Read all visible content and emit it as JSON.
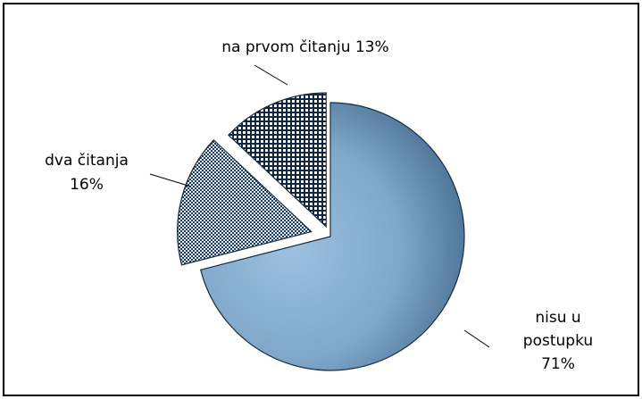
{
  "chart_data": {
    "type": "pie",
    "title": "",
    "slices": [
      {
        "label": "nisu u postupku",
        "value": 71,
        "display": [
          "nisu u",
          "postupku",
          "71%"
        ],
        "fill": "#7fa7c9",
        "pattern": "gradient"
      },
      {
        "label": "dva čitanja",
        "value": 16,
        "display": [
          "dva čitanja",
          "16%"
        ],
        "fill": "#5a7ea0",
        "pattern": "dots"
      },
      {
        "label": "na prvom čitanju",
        "value": 13,
        "display": [
          "na prvom čitanju 13%"
        ],
        "fill": "#17324f",
        "pattern": "grid"
      }
    ],
    "legend": "none",
    "exploded": true
  },
  "colors": {
    "frame": "#000000",
    "slice_light": "#8fb4d6",
    "slice_dark": "#1c3550",
    "pattern_bg": "#ffffff"
  }
}
